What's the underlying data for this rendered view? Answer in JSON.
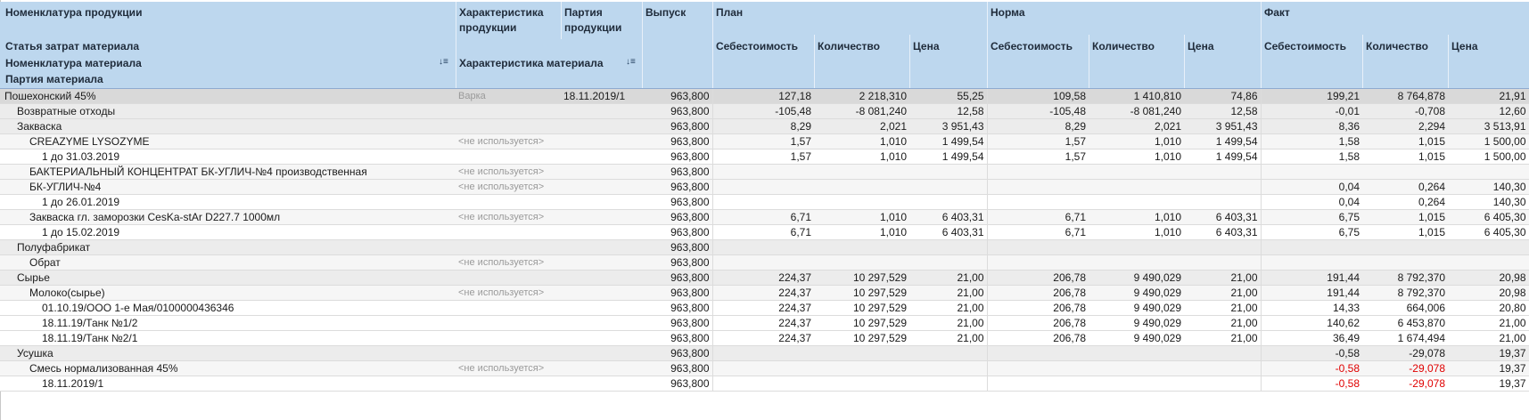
{
  "header": {
    "col_product": "Номенклатура продукции",
    "col_characteristic": "Характеристика продукции",
    "col_batch": "Партия продукции",
    "col_output": "Выпуск",
    "group_plan": "План",
    "group_norm": "Норма",
    "group_fact": "Факт",
    "row2_cost_item": "Статья затрат материала",
    "row2_material": "Номенклатура материала",
    "row2_material_char": "Характеристика материала",
    "row2_material_batch": "Партия материала",
    "sub_cost": "Себестоимость",
    "sub_qty": "Количество",
    "sub_price": "Цена"
  },
  "rows": [
    {
      "level": 0,
      "name": "Пошехонский 45%",
      "char": "Варка",
      "batch": "18.11.2019/1",
      "output": "963,800",
      "plan": [
        "127,18",
        "2 218,310",
        "55,25"
      ],
      "norm": [
        "109,58",
        "1 410,810",
        "74,86"
      ],
      "fact": [
        "199,21",
        "8 764,878",
        "21,91"
      ]
    },
    {
      "level": 1,
      "name": "Возвратные отходы",
      "char": "",
      "batch": "",
      "output": "963,800",
      "plan": [
        "-105,48",
        "-8 081,240",
        "12,58"
      ],
      "norm": [
        "-105,48",
        "-8 081,240",
        "12,58"
      ],
      "fact": [
        "-0,01",
        "-0,708",
        "12,60"
      ]
    },
    {
      "level": 1,
      "name": "Закваска",
      "char": "",
      "batch": "",
      "output": "963,800",
      "plan": [
        "8,29",
        "2,021",
        "3 951,43"
      ],
      "norm": [
        "8,29",
        "2,021",
        "3 951,43"
      ],
      "fact": [
        "8,36",
        "2,294",
        "3 513,91"
      ]
    },
    {
      "level": 2,
      "name": "CREAZYME LYSOZYME",
      "char": "<не используется>",
      "batch": "",
      "output": "963,800",
      "plan": [
        "1,57",
        "1,010",
        "1 499,54"
      ],
      "norm": [
        "1,57",
        "1,010",
        "1 499,54"
      ],
      "fact": [
        "1,58",
        "1,015",
        "1 500,00"
      ]
    },
    {
      "level": 3,
      "name": "1 до 31.03.2019",
      "char": "",
      "batch": "",
      "output": "963,800",
      "plan": [
        "1,57",
        "1,010",
        "1 499,54"
      ],
      "norm": [
        "1,57",
        "1,010",
        "1 499,54"
      ],
      "fact": [
        "1,58",
        "1,015",
        "1 500,00"
      ]
    },
    {
      "level": 2,
      "name": "БАКТЕРИАЛЬНЫЙ КОНЦЕНТРАТ БК-УГЛИЧ-№4 производственная",
      "char": "<не используется>",
      "batch": "",
      "output": "963,800",
      "plan": [
        "",
        "",
        ""
      ],
      "norm": [
        "",
        "",
        ""
      ],
      "fact": [
        "",
        "",
        ""
      ]
    },
    {
      "level": 2,
      "name": "БК-УГЛИЧ-№4",
      "char": "<не используется>",
      "batch": "",
      "output": "963,800",
      "plan": [
        "",
        "",
        ""
      ],
      "norm": [
        "",
        "",
        ""
      ],
      "fact": [
        "0,04",
        "0,264",
        "140,30"
      ]
    },
    {
      "level": 3,
      "name": "1 до 26.01.2019",
      "char": "",
      "batch": "",
      "output": "963,800",
      "plan": [
        "",
        "",
        ""
      ],
      "norm": [
        "",
        "",
        ""
      ],
      "fact": [
        "0,04",
        "0,264",
        "140,30"
      ]
    },
    {
      "level": 2,
      "name": "Закваска гл. заморозки CesKa-stAr D227.7 1000мл",
      "char": "<не используется>",
      "batch": "",
      "output": "963,800",
      "plan": [
        "6,71",
        "1,010",
        "6 403,31"
      ],
      "norm": [
        "6,71",
        "1,010",
        "6 403,31"
      ],
      "fact": [
        "6,75",
        "1,015",
        "6 405,30"
      ]
    },
    {
      "level": 3,
      "name": "1 до 15.02.2019",
      "char": "",
      "batch": "",
      "output": "963,800",
      "plan": [
        "6,71",
        "1,010",
        "6 403,31"
      ],
      "norm": [
        "6,71",
        "1,010",
        "6 403,31"
      ],
      "fact": [
        "6,75",
        "1,015",
        "6 405,30"
      ]
    },
    {
      "level": 1,
      "name": "Полуфабрикат",
      "char": "",
      "batch": "",
      "output": "963,800",
      "plan": [
        "",
        "",
        ""
      ],
      "norm": [
        "",
        "",
        ""
      ],
      "fact": [
        "",
        "",
        ""
      ]
    },
    {
      "level": 2,
      "name": "Обрат",
      "char": "<не используется>",
      "batch": "",
      "output": "963,800",
      "plan": [
        "",
        "",
        ""
      ],
      "norm": [
        "",
        "",
        ""
      ],
      "fact": [
        "",
        "",
        ""
      ]
    },
    {
      "level": 1,
      "name": "Сырье",
      "char": "",
      "batch": "",
      "output": "963,800",
      "plan": [
        "224,37",
        "10 297,529",
        "21,00"
      ],
      "norm": [
        "206,78",
        "9 490,029",
        "21,00"
      ],
      "fact": [
        "191,44",
        "8 792,370",
        "20,98"
      ]
    },
    {
      "level": 2,
      "name": "Молоко(сырье)",
      "char": "<не используется>",
      "batch": "",
      "output": "963,800",
      "plan": [
        "224,37",
        "10 297,529",
        "21,00"
      ],
      "norm": [
        "206,78",
        "9 490,029",
        "21,00"
      ],
      "fact": [
        "191,44",
        "8 792,370",
        "20,98"
      ]
    },
    {
      "level": 3,
      "name": "01.10.19/ООО 1-е Мая/0100000436346",
      "char": "",
      "batch": "",
      "output": "963,800",
      "plan": [
        "224,37",
        "10 297,529",
        "21,00"
      ],
      "norm": [
        "206,78",
        "9 490,029",
        "21,00"
      ],
      "fact": [
        "14,33",
        "664,006",
        "20,80"
      ]
    },
    {
      "level": 3,
      "name": "18.11.19/Танк №1/2",
      "char": "",
      "batch": "",
      "output": "963,800",
      "plan": [
        "224,37",
        "10 297,529",
        "21,00"
      ],
      "norm": [
        "206,78",
        "9 490,029",
        "21,00"
      ],
      "fact": [
        "140,62",
        "6 453,870",
        "21,00"
      ]
    },
    {
      "level": 3,
      "name": "18.11.19/Танк №2/1",
      "char": "",
      "batch": "",
      "output": "963,800",
      "plan": [
        "224,37",
        "10 297,529",
        "21,00"
      ],
      "norm": [
        "206,78",
        "9 490,029",
        "21,00"
      ],
      "fact": [
        "36,49",
        "1 674,494",
        "21,00"
      ]
    },
    {
      "level": 1,
      "name": "Усушка",
      "char": "",
      "batch": "",
      "output": "963,800",
      "plan": [
        "",
        "",
        ""
      ],
      "norm": [
        "",
        "",
        ""
      ],
      "fact": [
        "-0,58",
        "-29,078",
        "19,37"
      ]
    },
    {
      "level": 2,
      "name": "Смесь нормализованная 45%",
      "char": "<не используется>",
      "batch": "",
      "output": "963,800",
      "plan": [
        "",
        "",
        ""
      ],
      "norm": [
        "",
        "",
        ""
      ],
      "fact": [
        "-0,58",
        "-29,078",
        "19,37"
      ],
      "fact_negative": true
    },
    {
      "level": 3,
      "name": "18.11.2019/1",
      "char": "",
      "batch": "",
      "output": "963,800",
      "plan": [
        "",
        "",
        ""
      ],
      "norm": [
        "",
        "",
        ""
      ],
      "fact": [
        "-0,58",
        "-29,078",
        "19,37"
      ],
      "fact_negative": true
    }
  ],
  "colors": {
    "header_bg": "#bdd7ee",
    "level0": "#d9d9d9",
    "level1": "#ececec",
    "negative": "#e00000"
  },
  "icons": {
    "sort": "sort-order-icon"
  }
}
